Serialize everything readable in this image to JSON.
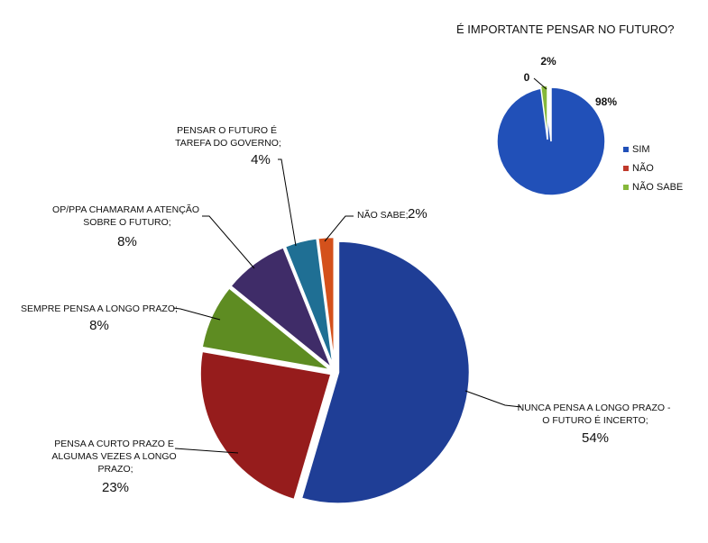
{
  "chart_data": [
    {
      "type": "pie",
      "title": "",
      "slices": [
        {
          "label": [
            "NUNCA PENSA A LONGO PRAZO -",
            "O FUTURO É INCERTO;"
          ],
          "pct_text": "54%",
          "value": 54,
          "color": "#1f3e96"
        },
        {
          "label": [
            "PENSA A CURTO PRAZO E",
            "ALGUMAS VEZES A LONGO",
            "PRAZO;"
          ],
          "pct_text": "23%",
          "value": 23,
          "color": "#961c1c"
        },
        {
          "label": [
            "SEMPRE PENSA A LONGO PRAZO;"
          ],
          "pct_text": "8%",
          "value": 8,
          "color": "#5e8c22"
        },
        {
          "label": [
            "OP/PPA CHAMARAM A ATENÇÃO",
            "SOBRE O FUTURO;"
          ],
          "pct_text": "8%",
          "value": 8,
          "color": "#3f2c68"
        },
        {
          "label": [
            "PENSAR O FUTURO É",
            "TAREFA DO GOVERNO;"
          ],
          "pct_text": "4%",
          "value": 4,
          "color": "#1f6f94"
        },
        {
          "label": [
            "NÃO SABE;"
          ],
          "pct_text": "2%",
          "value": 2,
          "color": "#d4511c"
        }
      ],
      "legend": "none"
    },
    {
      "type": "pie",
      "title": "É IMPORTANTE PENSAR  NO FUTURO?",
      "slices": [
        {
          "label": "SIM",
          "pct_text": "98%",
          "value": 98,
          "color": "#2150b8"
        },
        {
          "label": "NÃO",
          "pct_text": "0",
          "value": 0,
          "color": "#c0392b"
        },
        {
          "label": "NÃO SABE",
          "pct_text": "2%",
          "value": 2,
          "color": "#86b83a"
        }
      ],
      "legend": "right"
    }
  ]
}
